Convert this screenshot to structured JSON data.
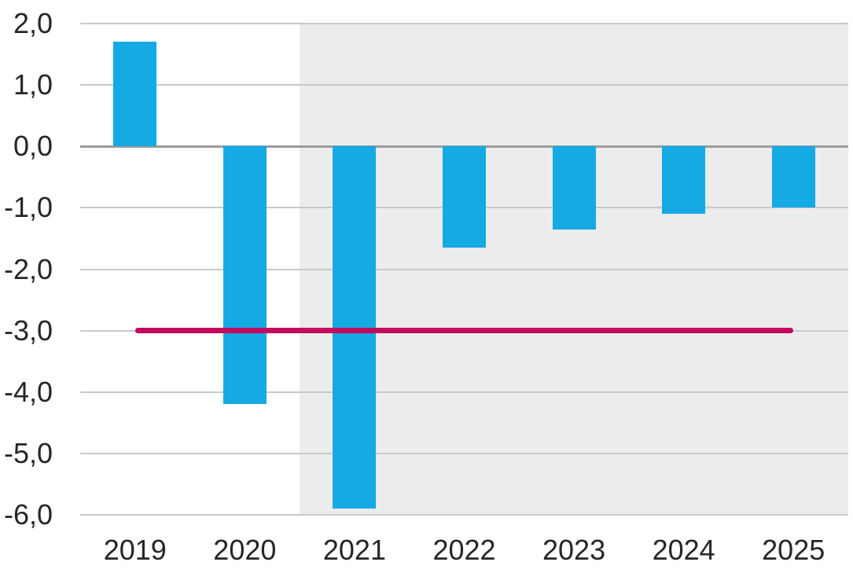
{
  "chart_data": {
    "type": "bar",
    "title": "",
    "xlabel": "",
    "ylabel": "",
    "categories": [
      "2019",
      "2020",
      "2021",
      "2022",
      "2023",
      "2024",
      "2025"
    ],
    "series": [
      {
        "name": "bars",
        "type": "bar",
        "color": "#15AAE3",
        "values": [
          1.7,
          -4.2,
          -5.9,
          -1.65,
          -1.35,
          -1.1,
          -1.0
        ]
      },
      {
        "name": "reference-line",
        "type": "line",
        "color": "#C40A5F",
        "value": -3.0,
        "values": [
          -3.0,
          -3.0,
          -3.0,
          -3.0,
          -3.0,
          -3.0,
          -3.0
        ]
      }
    ],
    "ylim": [
      -6.0,
      2.0
    ],
    "ytick_step": 1.0,
    "ytick_labels": [
      "2,0",
      "1,0",
      "0,0",
      "-1,0",
      "-2,0",
      "-3,0",
      "-4,0",
      "-5,0",
      "-6,0"
    ],
    "decimal_separator": ",",
    "grid": true,
    "legend": false,
    "shaded_categories": [
      "2021",
      "2022",
      "2023",
      "2024",
      "2025"
    ],
    "colors": {
      "bar": "#15AAE3",
      "reference_line": "#C40A5F",
      "shaded_region": "#ECECEC",
      "gridline": "#C9C9C9",
      "zero_line": "#9B9B9B",
      "axis_text": "#262626",
      "background": "#FFFFFF"
    }
  }
}
